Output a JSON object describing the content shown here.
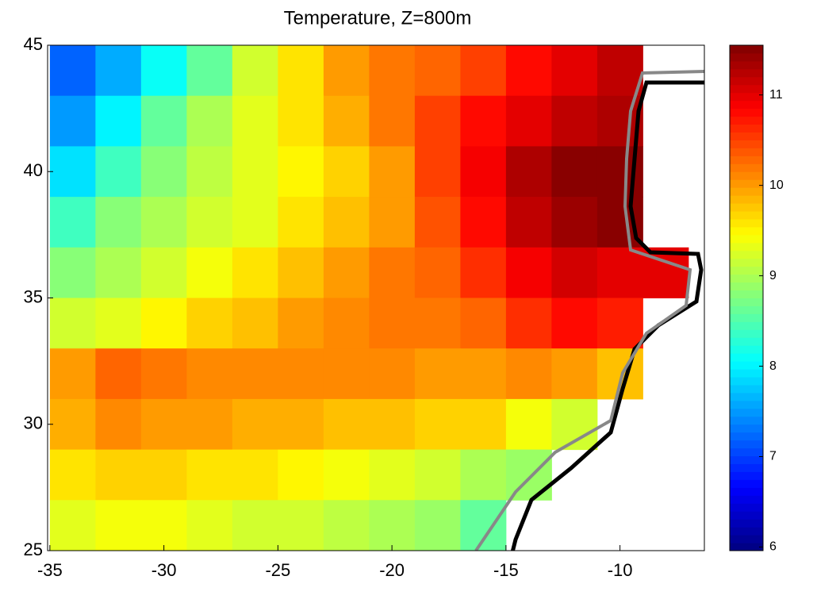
{
  "chart_data": {
    "type": "heatmap",
    "title": "Temperature, Z=800m",
    "colormap": "jet",
    "x": [
      -34,
      -32,
      -30,
      -28,
      -26,
      -24,
      -22,
      -20,
      -18,
      -16,
      -14,
      -12,
      -10,
      -8,
      -6
    ],
    "y": [
      44,
      42,
      40,
      38,
      36,
      34,
      32,
      30,
      28,
      26
    ],
    "values": [
      [
        7.2,
        7.6,
        8.1,
        8.6,
        9.2,
        9.6,
        10.0,
        10.2,
        10.3,
        10.5,
        10.8,
        11.0,
        11.2,
        null,
        null
      ],
      [
        7.5,
        8.0,
        8.6,
        9.0,
        9.3,
        9.6,
        9.9,
        10.2,
        10.5,
        10.8,
        11.0,
        11.2,
        11.3,
        null,
        null
      ],
      [
        7.9,
        8.4,
        8.8,
        9.1,
        9.3,
        9.5,
        9.7,
        10.0,
        10.5,
        10.9,
        11.3,
        11.5,
        11.5,
        null,
        null
      ],
      [
        8.4,
        8.8,
        9.0,
        9.2,
        9.3,
        9.6,
        9.8,
        10.0,
        10.4,
        10.8,
        11.2,
        11.4,
        11.5,
        null,
        null
      ],
      [
        8.8,
        9.0,
        9.2,
        9.4,
        9.6,
        9.8,
        10.0,
        10.2,
        10.3,
        10.6,
        10.9,
        11.1,
        11.0,
        11.0,
        null
      ],
      [
        9.2,
        9.3,
        9.5,
        9.7,
        9.8,
        10.0,
        10.1,
        10.2,
        10.2,
        10.3,
        10.6,
        10.8,
        10.7,
        null,
        null
      ],
      [
        10.0,
        10.3,
        10.2,
        10.1,
        10.1,
        10.1,
        10.1,
        10.1,
        10.0,
        10.0,
        10.1,
        10.0,
        9.8,
        null,
        null
      ],
      [
        9.9,
        10.1,
        10.0,
        10.0,
        9.9,
        9.9,
        9.8,
        9.8,
        9.7,
        9.7,
        9.4,
        9.2,
        null,
        null,
        null
      ],
      [
        9.6,
        9.7,
        9.7,
        9.6,
        9.6,
        9.5,
        9.4,
        9.3,
        9.2,
        9.0,
        8.9,
        null,
        null,
        null,
        null
      ],
      [
        9.3,
        9.4,
        9.4,
        9.3,
        9.2,
        9.2,
        9.1,
        9.0,
        8.9,
        8.6,
        null,
        null,
        null,
        null,
        null
      ]
    ],
    "xlim": [
      -35.1,
      -6.3
    ],
    "ylim": [
      25,
      45
    ],
    "xticks": [
      -35,
      -30,
      -25,
      -20,
      -15,
      -10
    ],
    "yticks": [
      25,
      30,
      35,
      40,
      45
    ],
    "clim": [
      5.96,
      11.55
    ],
    "cticks": [
      6,
      7,
      8,
      9,
      10,
      11
    ]
  }
}
